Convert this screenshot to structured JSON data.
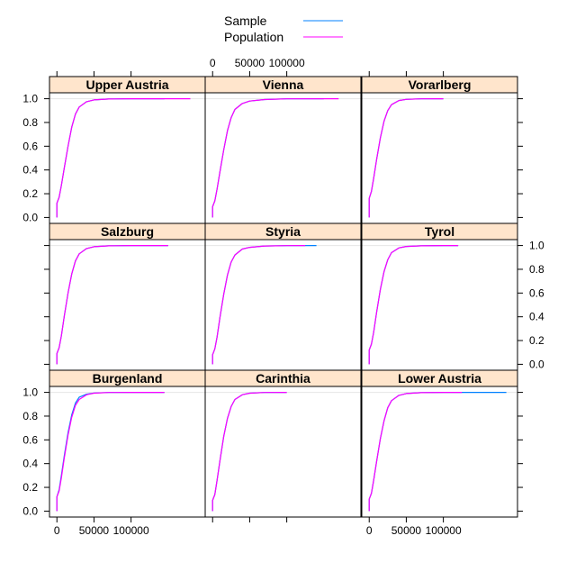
{
  "chart_data": {
    "type": "line",
    "layout": "trellis 3x3",
    "title": "",
    "xlabel": "",
    "ylabel": "",
    "xlim": [
      -10000,
      200000
    ],
    "ylim": [
      -0.05,
      1.05
    ],
    "x_ticks": [
      0,
      50000,
      100000
    ],
    "x_tick_labels": [
      "0",
      "50000",
      "100000"
    ],
    "y_ticks": [
      0.0,
      0.2,
      0.4,
      0.6,
      0.8,
      1.0
    ],
    "y_tick_labels": [
      "0.0",
      "0.2",
      "0.4",
      "0.6",
      "0.8",
      "1.0"
    ],
    "legend": {
      "placement": "top-center",
      "entries": [
        {
          "name": "Sample",
          "color": "#0080ff"
        },
        {
          "name": "Population",
          "color": "#ff00ff"
        }
      ]
    },
    "strip_color": "#ffe5cc",
    "panels": [
      {
        "name": "Upper Austria",
        "row": 0,
        "col": 0,
        "series": [
          {
            "name": "Sample",
            "x": [
              0,
              0,
              3000,
              6000,
              10000,
              15000,
              20000,
              25000,
              30000,
              40000,
              50000,
              70000,
              100000,
              145000
            ],
            "y": [
              0,
              0.12,
              0.17,
              0.27,
              0.42,
              0.6,
              0.76,
              0.87,
              0.93,
              0.975,
              0.99,
              0.998,
              1.0,
              1.0
            ]
          },
          {
            "name": "Population",
            "x": [
              0,
              0,
              3000,
              6000,
              10000,
              15000,
              20000,
              25000,
              30000,
              40000,
              50000,
              70000,
              100000,
              180000
            ],
            "y": [
              0,
              0.12,
              0.17,
              0.27,
              0.42,
              0.6,
              0.76,
              0.87,
              0.93,
              0.975,
              0.99,
              0.998,
              1.0,
              1.0
            ]
          }
        ]
      },
      {
        "name": "Vienna",
        "row": 0,
        "col": 1,
        "series": [
          {
            "name": "Sample",
            "x": [
              0,
              0,
              3000,
              6000,
              10000,
              15000,
              20000,
              25000,
              30000,
              40000,
              50000,
              70000,
              100000,
              150000
            ],
            "y": [
              0,
              0.09,
              0.14,
              0.24,
              0.39,
              0.57,
              0.73,
              0.84,
              0.91,
              0.96,
              0.98,
              0.993,
              0.999,
              1.0
            ]
          },
          {
            "name": "Population",
            "x": [
              0,
              0,
              3000,
              6000,
              10000,
              15000,
              20000,
              25000,
              30000,
              40000,
              50000,
              70000,
              100000,
              170000
            ],
            "y": [
              0,
              0.09,
              0.14,
              0.24,
              0.39,
              0.57,
              0.73,
              0.84,
              0.91,
              0.96,
              0.98,
              0.993,
              0.999,
              1.0
            ]
          }
        ]
      },
      {
        "name": "Vorarlberg",
        "row": 0,
        "col": 2,
        "series": [
          {
            "name": "Sample",
            "x": [
              0,
              0,
              3000,
              6000,
              10000,
              15000,
              20000,
              25000,
              30000,
              40000,
              50000,
              70000,
              100000
            ],
            "y": [
              0,
              0.16,
              0.22,
              0.33,
              0.49,
              0.67,
              0.81,
              0.9,
              0.95,
              0.985,
              0.995,
              0.999,
              1.0
            ]
          },
          {
            "name": "Population",
            "x": [
              0,
              0,
              3000,
              6000,
              10000,
              15000,
              20000,
              25000,
              30000,
              40000,
              50000,
              70000,
              100000
            ],
            "y": [
              0,
              0.16,
              0.22,
              0.33,
              0.49,
              0.67,
              0.81,
              0.9,
              0.95,
              0.985,
              0.995,
              0.999,
              1.0
            ]
          }
        ]
      },
      {
        "name": "Salzburg",
        "row": 1,
        "col": 0,
        "series": [
          {
            "name": "Sample",
            "x": [
              0,
              0,
              3000,
              6000,
              10000,
              15000,
              20000,
              25000,
              30000,
              40000,
              50000,
              70000,
              100000,
              150000
            ],
            "y": [
              0,
              0.09,
              0.14,
              0.24,
              0.41,
              0.6,
              0.76,
              0.87,
              0.93,
              0.975,
              0.99,
              0.998,
              1.0,
              1.0
            ]
          },
          {
            "name": "Population",
            "x": [
              0,
              0,
              3000,
              6000,
              10000,
              15000,
              20000,
              25000,
              30000,
              40000,
              50000,
              70000,
              100000,
              150000
            ],
            "y": [
              0,
              0.09,
              0.14,
              0.24,
              0.41,
              0.6,
              0.76,
              0.87,
              0.93,
              0.975,
              0.99,
              0.998,
              1.0,
              1.0
            ]
          }
        ]
      },
      {
        "name": "Styria",
        "row": 1,
        "col": 1,
        "series": [
          {
            "name": "Sample",
            "x": [
              0,
              0,
              3000,
              6000,
              10000,
              15000,
              20000,
              25000,
              30000,
              40000,
              50000,
              70000,
              100000,
              140000
            ],
            "y": [
              0,
              0.08,
              0.13,
              0.23,
              0.4,
              0.59,
              0.75,
              0.86,
              0.92,
              0.97,
              0.985,
              0.996,
              0.999,
              1.0
            ]
          },
          {
            "name": "Population",
            "x": [
              0,
              0,
              3000,
              6000,
              10000,
              15000,
              20000,
              25000,
              30000,
              40000,
              50000,
              70000,
              100000,
              125000
            ],
            "y": [
              0,
              0.08,
              0.13,
              0.23,
              0.4,
              0.59,
              0.75,
              0.86,
              0.92,
              0.97,
              0.985,
              0.996,
              0.999,
              1.0
            ]
          }
        ]
      },
      {
        "name": "Tyrol",
        "row": 1,
        "col": 2,
        "series": [
          {
            "name": "Sample",
            "x": [
              0,
              0,
              3000,
              6000,
              10000,
              15000,
              20000,
              25000,
              30000,
              40000,
              50000,
              70000,
              100000,
              120000
            ],
            "y": [
              0,
              0.12,
              0.17,
              0.27,
              0.44,
              0.63,
              0.78,
              0.88,
              0.94,
              0.98,
              0.992,
              0.998,
              1.0,
              1.0
            ]
          },
          {
            "name": "Population",
            "x": [
              0,
              0,
              3000,
              6000,
              10000,
              15000,
              20000,
              25000,
              30000,
              40000,
              50000,
              70000,
              100000,
              120000
            ],
            "y": [
              0,
              0.12,
              0.17,
              0.27,
              0.44,
              0.63,
              0.78,
              0.88,
              0.94,
              0.98,
              0.992,
              0.998,
              1.0,
              1.0
            ]
          }
        ]
      },
      {
        "name": "Burgenland",
        "row": 2,
        "col": 0,
        "series": [
          {
            "name": "Sample",
            "x": [
              0,
              0,
              3000,
              6000,
              10000,
              15000,
              20000,
              25000,
              30000,
              40000,
              50000,
              70000,
              100000,
              145000
            ],
            "y": [
              0,
              0.12,
              0.18,
              0.3,
              0.47,
              0.66,
              0.81,
              0.91,
              0.96,
              0.985,
              0.995,
              0.999,
              1.0,
              1.0
            ]
          },
          {
            "name": "Population",
            "x": [
              0,
              0,
              3000,
              6000,
              10000,
              15000,
              20000,
              25000,
              30000,
              40000,
              50000,
              70000,
              100000,
              145000
            ],
            "y": [
              0,
              0.12,
              0.17,
              0.28,
              0.45,
              0.64,
              0.79,
              0.89,
              0.94,
              0.98,
              0.993,
              0.999,
              1.0,
              1.0
            ]
          }
        ]
      },
      {
        "name": "Carinthia",
        "row": 2,
        "col": 1,
        "series": [
          {
            "name": "Sample",
            "x": [
              0,
              0,
              3000,
              6000,
              10000,
              15000,
              20000,
              25000,
              30000,
              40000,
              50000,
              70000,
              100000
            ],
            "y": [
              0,
              0.09,
              0.14,
              0.26,
              0.43,
              0.63,
              0.78,
              0.88,
              0.94,
              0.98,
              0.993,
              0.999,
              1.0
            ]
          },
          {
            "name": "Population",
            "x": [
              0,
              0,
              3000,
              6000,
              10000,
              15000,
              20000,
              25000,
              30000,
              40000,
              50000,
              70000,
              100000
            ],
            "y": [
              0,
              0.09,
              0.14,
              0.26,
              0.43,
              0.63,
              0.78,
              0.88,
              0.94,
              0.98,
              0.993,
              0.999,
              1.0
            ]
          }
        ]
      },
      {
        "name": "Lower Austria",
        "row": 2,
        "col": 2,
        "series": [
          {
            "name": "Sample",
            "x": [
              0,
              0,
              3000,
              6000,
              10000,
              15000,
              20000,
              25000,
              30000,
              40000,
              50000,
              70000,
              100000,
              185000
            ],
            "y": [
              0,
              0.1,
              0.15,
              0.26,
              0.42,
              0.61,
              0.76,
              0.87,
              0.93,
              0.975,
              0.99,
              0.998,
              1.0,
              1.0
            ]
          },
          {
            "name": "Population",
            "x": [
              0,
              0,
              3000,
              6000,
              10000,
              15000,
              20000,
              25000,
              30000,
              40000,
              50000,
              70000,
              100000,
              125000
            ],
            "y": [
              0,
              0.1,
              0.15,
              0.26,
              0.42,
              0.61,
              0.76,
              0.87,
              0.93,
              0.975,
              0.99,
              0.998,
              1.0,
              1.0
            ]
          }
        ]
      }
    ]
  }
}
